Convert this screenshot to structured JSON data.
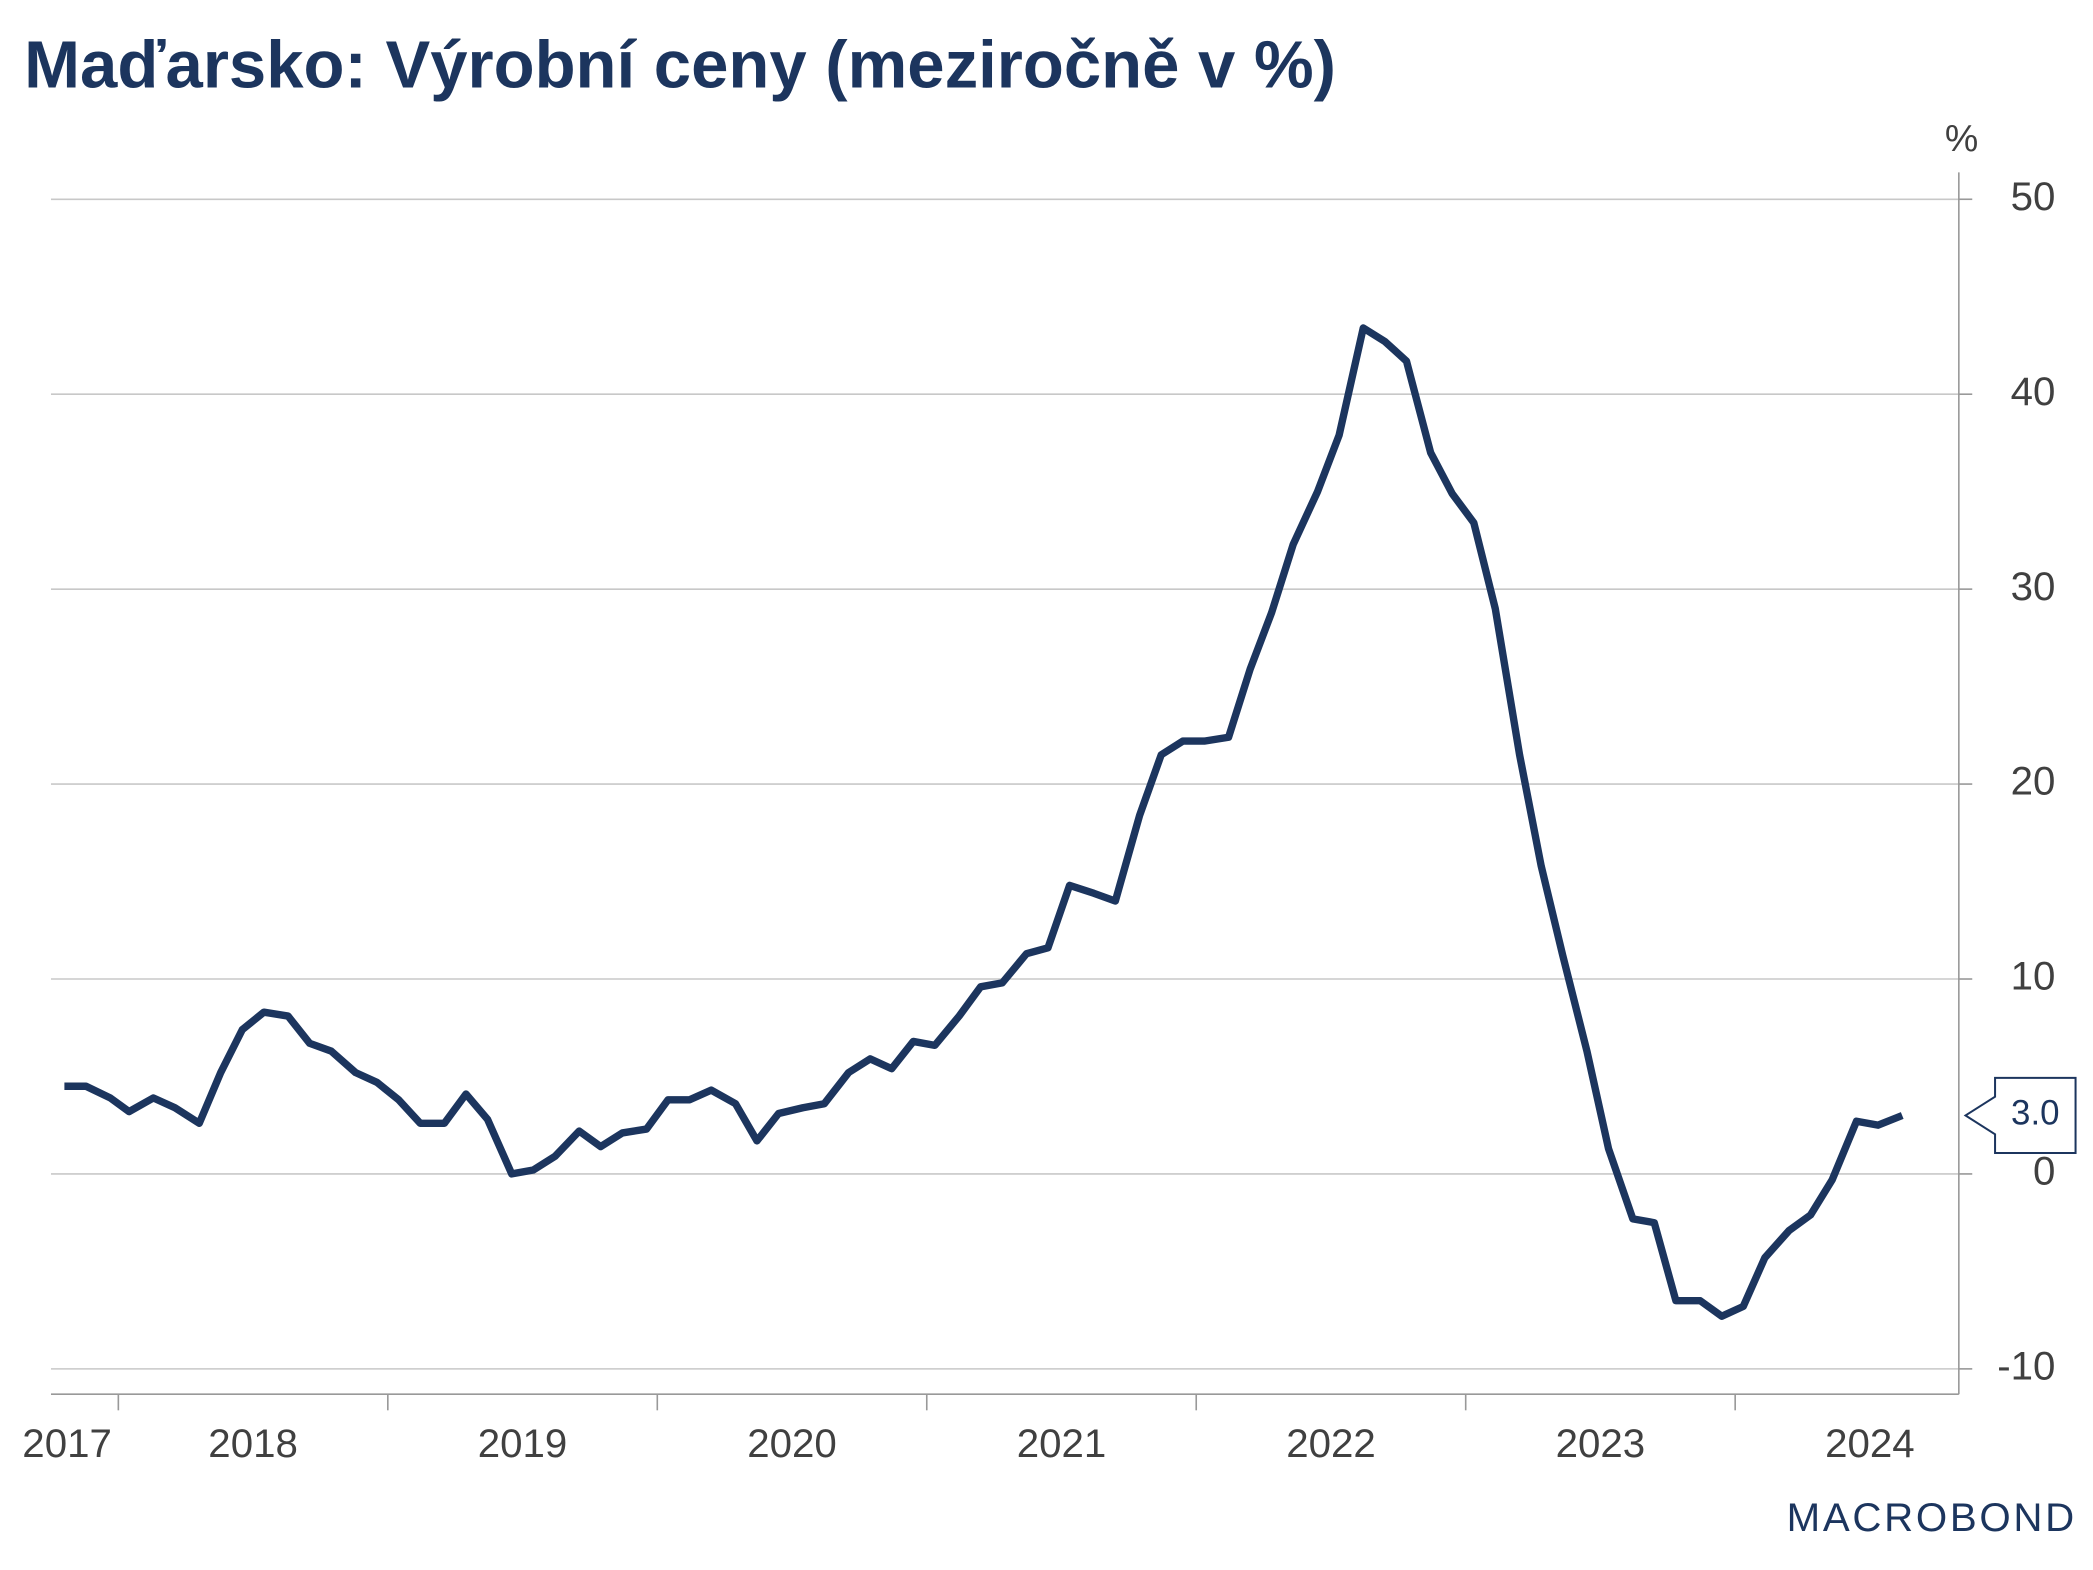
{
  "chart_data": {
    "type": "line",
    "title": "Maďarsko: Výrobní ceny (meziročně v %)",
    "y_unit": "%",
    "logo": "MACROBOND",
    "x": [
      2017.8,
      2017.88,
      2017.97,
      2018.04,
      2018.13,
      2018.21,
      2018.3,
      2018.38,
      2018.46,
      2018.54,
      2018.63,
      2018.71,
      2018.79,
      2018.88,
      2018.96,
      2019.04,
      2019.12,
      2019.21,
      2019.29,
      2019.37,
      2019.46,
      2019.54,
      2019.62,
      2019.71,
      2019.79,
      2019.87,
      2019.96,
      2020.04,
      2020.12,
      2020.2,
      2020.29,
      2020.37,
      2020.45,
      2020.54,
      2020.62,
      2020.71,
      2020.79,
      2020.87,
      2020.95,
      2021.03,
      2021.12,
      2021.2,
      2021.28,
      2021.37,
      2021.45,
      2021.53,
      2021.62,
      2021.7,
      2021.79,
      2021.87,
      2021.95,
      2022.03,
      2022.12,
      2022.2,
      2022.28,
      2022.36,
      2022.45,
      2022.53,
      2022.62,
      2022.7,
      2022.78,
      2022.87,
      2022.95,
      2023.03,
      2023.11,
      2023.2,
      2023.28,
      2023.36,
      2023.45,
      2023.53,
      2023.62,
      2023.7,
      2023.78,
      2023.87,
      2023.95,
      2024.03,
      2024.11,
      2024.2,
      2024.28,
      2024.36,
      2024.45,
      2024.53,
      2024.62
    ],
    "series": [
      {
        "color": "#1c355e",
        "values": [
          4.5,
          4.5,
          3.9,
          3.2,
          3.9,
          3.4,
          2.6,
          5.2,
          7.4,
          8.3,
          8.1,
          6.7,
          6.3,
          5.2,
          4.7,
          3.8,
          2.6,
          2.6,
          4.1,
          2.8,
          0.0,
          0.2,
          0.9,
          2.2,
          1.4,
          2.1,
          2.3,
          3.8,
          3.8,
          4.3,
          3.6,
          1.7,
          3.1,
          3.4,
          3.6,
          5.2,
          5.9,
          5.4,
          6.8,
          6.6,
          8.1,
          9.6,
          9.8,
          11.3,
          11.6,
          14.8,
          14.4,
          14.0,
          18.4,
          21.5,
          22.2,
          22.2,
          22.4,
          25.9,
          28.8,
          32.3,
          35.0,
          37.9,
          43.4,
          42.7,
          41.7,
          37.0,
          34.9,
          33.4,
          29.0,
          21.5,
          15.8,
          11.2,
          6.3,
          1.3,
          -2.3,
          -2.5,
          -6.5,
          -6.5,
          -7.3,
          -6.8,
          -4.3,
          -2.9,
          -2.1,
          -0.3,
          2.7,
          2.5,
          3.0
        ],
        "value_labels": [
          null,
          null,
          null,
          null,
          null,
          null,
          null,
          null,
          null,
          null,
          null,
          null,
          null,
          null,
          null,
          null,
          null,
          null,
          null,
          null,
          null,
          null,
          null,
          null,
          null,
          null,
          null,
          null,
          null,
          null,
          null,
          null,
          null,
          null,
          null,
          null,
          null,
          null,
          null,
          null,
          null,
          null,
          null,
          null,
          null,
          null,
          null,
          null,
          null,
          null,
          null,
          null,
          null,
          null,
          null,
          null,
          null,
          null,
          null,
          null,
          null,
          null,
          null,
          null,
          null,
          null,
          null,
          null,
          null,
          null,
          null,
          null,
          null,
          null,
          null,
          null,
          null,
          null,
          null,
          null,
          null,
          null,
          "3.0"
        ]
      }
    ],
    "xlim": [
      2017.75,
      2024.83
    ],
    "xticks": [
      2018,
      2019,
      2020,
      2021,
      2022,
      2023,
      2024
    ],
    "year_labels": [
      2017,
      2018,
      2019,
      2020,
      2021,
      2022,
      2023,
      2024
    ],
    "ylim": [
      -11.3,
      50
    ],
    "yticks": [
      -10,
      0,
      10,
      20,
      30,
      40,
      50
    ],
    "y_axis_side": "right",
    "grid": true
  }
}
